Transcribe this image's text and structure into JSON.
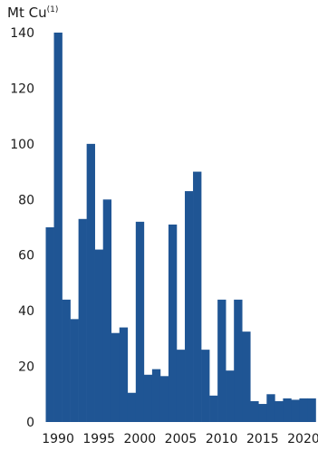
{
  "chart_data": {
    "type": "bar",
    "title": "",
    "ylabel_main": "Mt Cu",
    "ylabel_sup": "(1)",
    "xlabel": "",
    "ylim": [
      0,
      140
    ],
    "y_ticks": [
      "0",
      "20",
      "40",
      "60",
      "80",
      "100",
      "120",
      "140"
    ],
    "y_tick_values": [
      0,
      20,
      40,
      60,
      80,
      100,
      120,
      140
    ],
    "x_tick_labels": [
      "1990",
      "1995",
      "2000",
      "2005",
      "2010",
      "2015",
      "2020"
    ],
    "x_tick_years": [
      1990,
      1995,
      2000,
      2005,
      2010,
      2015,
      2020
    ],
    "categories": [
      1989,
      1990,
      1991,
      1992,
      1993,
      1994,
      1995,
      1996,
      1997,
      1998,
      1999,
      2000,
      2001,
      2002,
      2003,
      2004,
      2005,
      2006,
      2007,
      2008,
      2009,
      2010,
      2011,
      2012,
      2013,
      2014,
      2015,
      2016,
      2017,
      2018,
      2019,
      2020,
      2021
    ],
    "values": [
      70,
      140,
      44,
      37,
      73,
      100,
      62,
      80,
      32,
      34,
      10.5,
      72,
      17,
      19,
      16.5,
      71,
      26,
      83,
      90,
      26,
      9.5,
      44,
      18.5,
      44,
      32.5,
      7.5,
      6.5,
      10,
      7.5,
      8.5,
      8,
      8.5,
      8.5
    ],
    "bar_color": "#1f5594",
    "grid": false,
    "legend": "none"
  }
}
